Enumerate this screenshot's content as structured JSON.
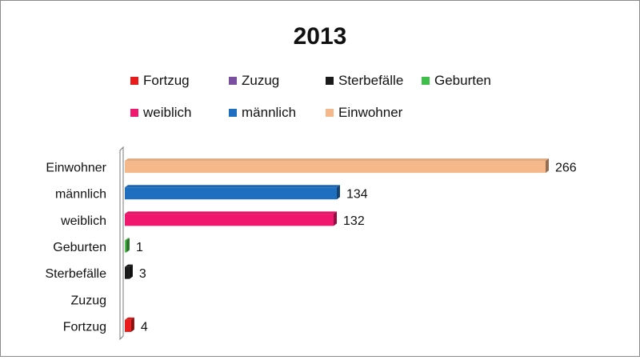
{
  "chart_data": {
    "type": "bar",
    "orientation": "horizontal",
    "title": "2013",
    "categories": [
      "Einwohner",
      "männlich",
      "weiblich",
      "Geburten",
      "Sterbefälle",
      "Zuzug",
      "Fortzug"
    ],
    "values": [
      266,
      134,
      132,
      1,
      3,
      0,
      4
    ],
    "value_labels": [
      "266",
      "134",
      "132",
      "1",
      "3",
      "",
      "4"
    ],
    "colors": [
      "#F5B88A",
      "#1F6FC0",
      "#F0186E",
      "#4CC24C",
      "#1A1A1A",
      "#7B4FA0",
      "#E81A1A"
    ],
    "xlim": [
      0,
      266
    ],
    "grid": false,
    "legend_placement": "top",
    "legend": {
      "rows": [
        [
          {
            "label": "Fortzug",
            "color": "#E81A1A"
          },
          {
            "label": "Zuzug",
            "color": "#7B4FA0"
          },
          {
            "label": "Sterbefälle",
            "color": "#1A1A1A"
          },
          {
            "label": "Geburten",
            "color": "#3DBF4A"
          }
        ],
        [
          {
            "label": "weiblich",
            "color": "#F0186E"
          },
          {
            "label": "männlich",
            "color": "#1F6FC0"
          },
          {
            "label": "Einwohner",
            "color": "#F5B88A"
          }
        ]
      ]
    }
  }
}
